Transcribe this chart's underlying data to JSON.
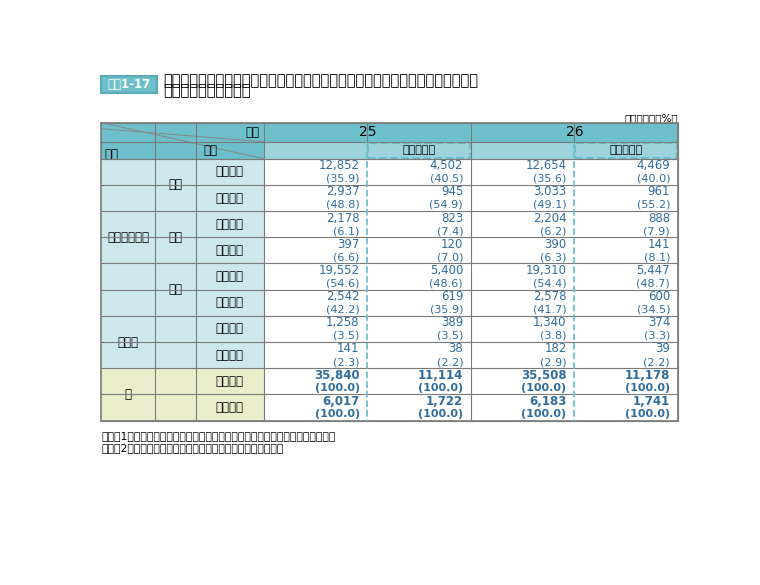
{
  "title_box": "資料1-17",
  "title_line1": "国家公務員採用一般職（大卒程度試験）の国・公・私立別出身大学（含大学院）",
  "title_line2": "別申込者数・合格者数",
  "unit": "（単位：人、%）",
  "header_year": "年度",
  "header_gakureki": "学歴",
  "header_koumoku": "項目",
  "year25": "25",
  "year26": "26",
  "uchi_josei": "うち女性数",
  "row_labels_daigaku": "大学・大学院",
  "row_labels_kokuritu": "国立",
  "row_labels_koritu": "公立",
  "row_labels_shiritu": "私立",
  "row_labels_sonota": "その他",
  "row_labels_kei": "計",
  "koumoku_labels": [
    "申込者数",
    "合格者数",
    "申込者数",
    "合格者数",
    "申込者数",
    "合格者数",
    "申込者数",
    "合格者数",
    "申込者数",
    "合格者数"
  ],
  "data_val": [
    [
      "12,852",
      "4,502",
      "12,654",
      "4,469"
    ],
    [
      "2,937",
      "945",
      "3,033",
      "961"
    ],
    [
      "2,178",
      "823",
      "2,204",
      "888"
    ],
    [
      "397",
      "120",
      "390",
      "141"
    ],
    [
      "19,552",
      "5,400",
      "19,310",
      "5,447"
    ],
    [
      "2,542",
      "619",
      "2,578",
      "600"
    ],
    [
      "1,258",
      "389",
      "1,340",
      "374"
    ],
    [
      "141",
      "38",
      "182",
      "39"
    ],
    [
      "35,840",
      "11,114",
      "35,508",
      "11,178"
    ],
    [
      "6,017",
      "1,722",
      "6,183",
      "1,741"
    ]
  ],
  "data_pct": [
    [
      "(35.9)",
      "(40.5)",
      "(35.6)",
      "(40.0)"
    ],
    [
      "(48.8)",
      "(54.9)",
      "(49.1)",
      "(55.2)"
    ],
    [
      "(6.1)",
      "(7.4)",
      "(6.2)",
      "(7.9)"
    ],
    [
      "(6.6)",
      "(7.0)",
      "(6.3)",
      "(8.1)"
    ],
    [
      "(54.6)",
      "(48.6)",
      "(54.4)",
      "(48.7)"
    ],
    [
      "(42.2)",
      "(35.9)",
      "(41.7)",
      "(34.5)"
    ],
    [
      "(3.5)",
      "(3.5)",
      "(3.8)",
      "(3.3)"
    ],
    [
      "(2.3)",
      "(2.2)",
      "(2.9)",
      "(2.2)"
    ],
    [
      "(100.0)",
      "(100.0)",
      "(100.0)",
      "(100.0)"
    ],
    [
      "(100.0)",
      "(100.0)",
      "(100.0)",
      "(100.0)"
    ]
  ],
  "note1": "（注）1　（　）内は、申込者総数又は合格者総数に対する割合（％）を示す。",
  "note2": "　　　2　「その他」は、短大・高専、外国の大学等である。",
  "colors": {
    "header_teal": "#6dc0cb",
    "header_light_teal": "#9dd4db",
    "cell_light_teal": "#cde8ed",
    "cell_white": "#ffffff",
    "cell_yellow": "#eaedca",
    "border": "#7a7a7a",
    "text_blue": "#2e6d9e",
    "text_black": "#1a1a1a",
    "title_box_bg": "#6dc0cb",
    "title_box_border": "#5aabb7",
    "dashed_color": "#6dc0cb"
  }
}
